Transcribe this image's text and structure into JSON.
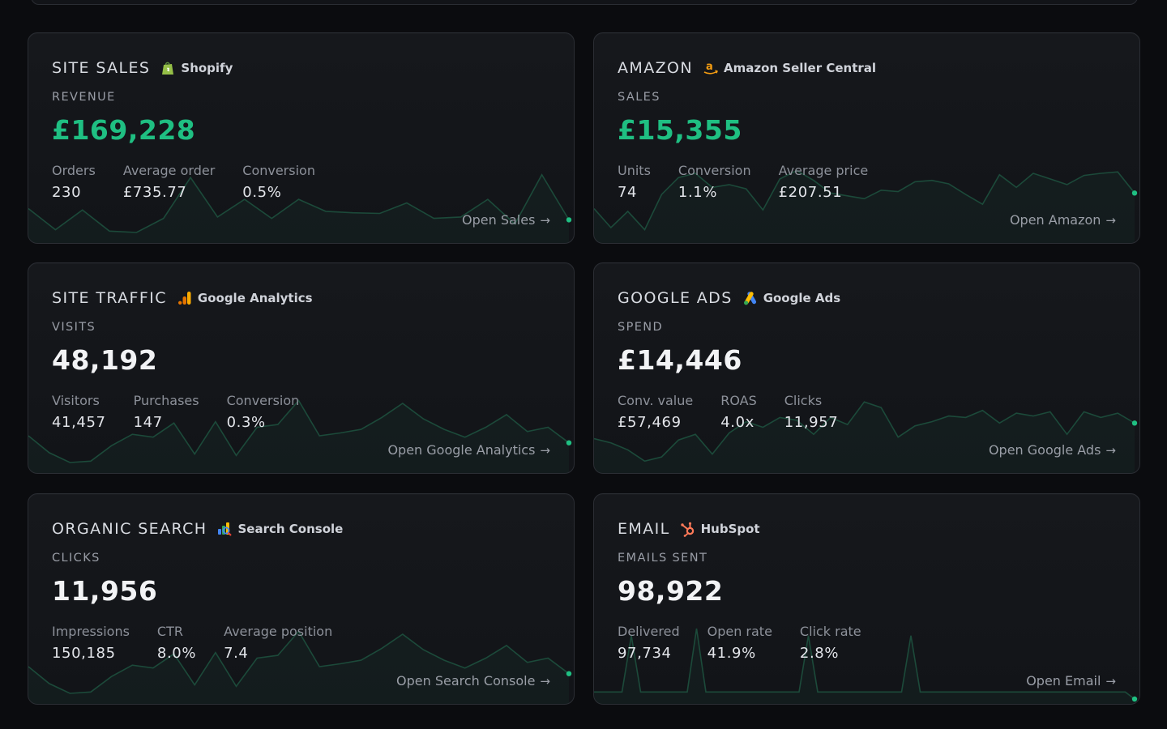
{
  "cards": [
    {
      "title": "SITE SALES",
      "source": "Shopify",
      "source_icon": "shopify-bag-icon",
      "metric_label": "REVENUE",
      "metric_value": "£169,228",
      "metric_color": "#1fbf82",
      "stats": [
        {
          "label": "Orders",
          "value": "230"
        },
        {
          "label": "Average order",
          "value": "£735.77"
        },
        {
          "label": "Conversion",
          "value": "0.5%"
        }
      ],
      "link": "Open Sales",
      "link_arrow": "→",
      "sparkline": [
        0.42,
        0.12,
        0.4,
        0.1,
        0.08,
        0.28,
        0.86,
        0.3,
        0.55,
        0.28,
        0.55,
        0.38,
        0.36,
        0.35,
        0.5,
        0.28,
        0.3,
        0.55,
        0.2,
        0.9,
        0.26
      ]
    },
    {
      "title": "AMAZON",
      "source": "Amazon Seller Central",
      "source_icon": "amazon-a-icon",
      "metric_label": "SALES",
      "metric_value": "£15,355",
      "metric_color": "#1fbf82",
      "stats": [
        {
          "label": "Units",
          "value": "74"
        },
        {
          "label": "Conversion",
          "value": "1.1%"
        },
        {
          "label": "Average price",
          "value": "£207.51"
        }
      ],
      "link": "Open Amazon",
      "link_arrow": "→",
      "sparkline": [
        0.42,
        0.15,
        0.38,
        0.12,
        0.62,
        0.86,
        0.92,
        0.72,
        0.76,
        0.7,
        0.4,
        0.84,
        0.96,
        0.82,
        0.64,
        0.6,
        0.56,
        0.68,
        0.66,
        0.8,
        0.82,
        0.77,
        0.62,
        0.48,
        0.9,
        0.72,
        0.92,
        0.84,
        0.76,
        0.89,
        0.92,
        0.94,
        0.64
      ]
    },
    {
      "title": "SITE TRAFFIC",
      "source": "Google Analytics",
      "source_icon": "google-analytics-icon",
      "metric_label": "VISITS",
      "metric_value": "48,192",
      "metric_color": "#f2f3f5",
      "stats": [
        {
          "label": "Visitors",
          "value": "41,457"
        },
        {
          "label": "Purchases",
          "value": "147"
        },
        {
          "label": "Conversion",
          "value": "0.3%"
        }
      ],
      "link": "Open Google Analytics",
      "link_arrow": "→",
      "sparkline": [
        0.46,
        0.22,
        0.08,
        0.1,
        0.32,
        0.48,
        0.44,
        0.64,
        0.2,
        0.66,
        0.18,
        0.58,
        0.62,
        0.96,
        0.46,
        0.5,
        0.55,
        0.72,
        0.92,
        0.7,
        0.55,
        0.44,
        0.58,
        0.76,
        0.52,
        0.58,
        0.36
      ]
    },
    {
      "title": "GOOGLE ADS",
      "source": "Google Ads",
      "source_icon": "google-ads-icon",
      "metric_label": "SPEND",
      "metric_value": "£14,446",
      "metric_color": "#f2f3f5",
      "stats": [
        {
          "label": "Conv. value",
          "value": "£57,469"
        },
        {
          "label": "ROAS",
          "value": "4.0x"
        },
        {
          "label": "Clicks",
          "value": "11,957"
        }
      ],
      "link": "Open Google Ads",
      "link_arrow": "→",
      "sparkline": [
        0.42,
        0.36,
        0.26,
        0.1,
        0.16,
        0.4,
        0.48,
        0.2,
        0.5,
        0.66,
        0.58,
        0.72,
        0.68,
        0.48,
        0.72,
        0.62,
        0.94,
        0.86,
        0.44,
        0.6,
        0.66,
        0.74,
        0.72,
        0.82,
        0.64,
        0.78,
        0.74,
        0.8,
        0.48,
        0.8,
        0.72,
        0.78,
        0.64
      ]
    },
    {
      "title": "ORGANIC SEARCH",
      "source": "Search Console",
      "source_icon": "search-console-icon",
      "metric_label": "CLICKS",
      "metric_value": "11,956",
      "metric_color": "#f2f3f5",
      "stats": [
        {
          "label": "Impressions",
          "value": "150,185"
        },
        {
          "label": "CTR",
          "value": "8.0%"
        },
        {
          "label": "Average position",
          "value": "7.4"
        }
      ],
      "link": "Open Search Console",
      "link_arrow": "→",
      "sparkline": [
        0.46,
        0.22,
        0.08,
        0.1,
        0.32,
        0.48,
        0.44,
        0.64,
        0.2,
        0.66,
        0.18,
        0.58,
        0.62,
        0.96,
        0.46,
        0.5,
        0.55,
        0.72,
        0.92,
        0.7,
        0.55,
        0.44,
        0.58,
        0.76,
        0.52,
        0.58,
        0.36
      ]
    },
    {
      "title": "EMAIL",
      "source": "HubSpot",
      "source_icon": "hubspot-sprocket-icon",
      "metric_label": "EMAILS SENT",
      "metric_value": "98,922",
      "metric_color": "#f2f3f5",
      "stats": [
        {
          "label": "Delivered",
          "value": "97,734"
        },
        {
          "label": "Open rate",
          "value": "41.9%"
        },
        {
          "label": "Click rate",
          "value": "2.8%"
        }
      ],
      "link": "Open Email",
      "link_arrow": "→",
      "sparkline": [
        0.1,
        0.1,
        0.1,
        0.1,
        0.9,
        0.1,
        0.1,
        0.1,
        0.1,
        0.1,
        0.1,
        1.0,
        0.1,
        0.1,
        0.1,
        0.1,
        0.1,
        0.1,
        0.1,
        0.1,
        0.1,
        0.1,
        0.1,
        0.9,
        0.1,
        0.1,
        0.1,
        0.1,
        0.1,
        0.1,
        0.1,
        0.1,
        0.1,
        0.1,
        0.9,
        0.1,
        0.1,
        0.1,
        0.1,
        0.1,
        0.1,
        0.1,
        0.1,
        0.1,
        0.1,
        0.1,
        0.1,
        0.1,
        0.1,
        0.1,
        0.1,
        0.1,
        0.1,
        0.1,
        0.1,
        0.1,
        0.1,
        0.1,
        0.0
      ]
    }
  ]
}
